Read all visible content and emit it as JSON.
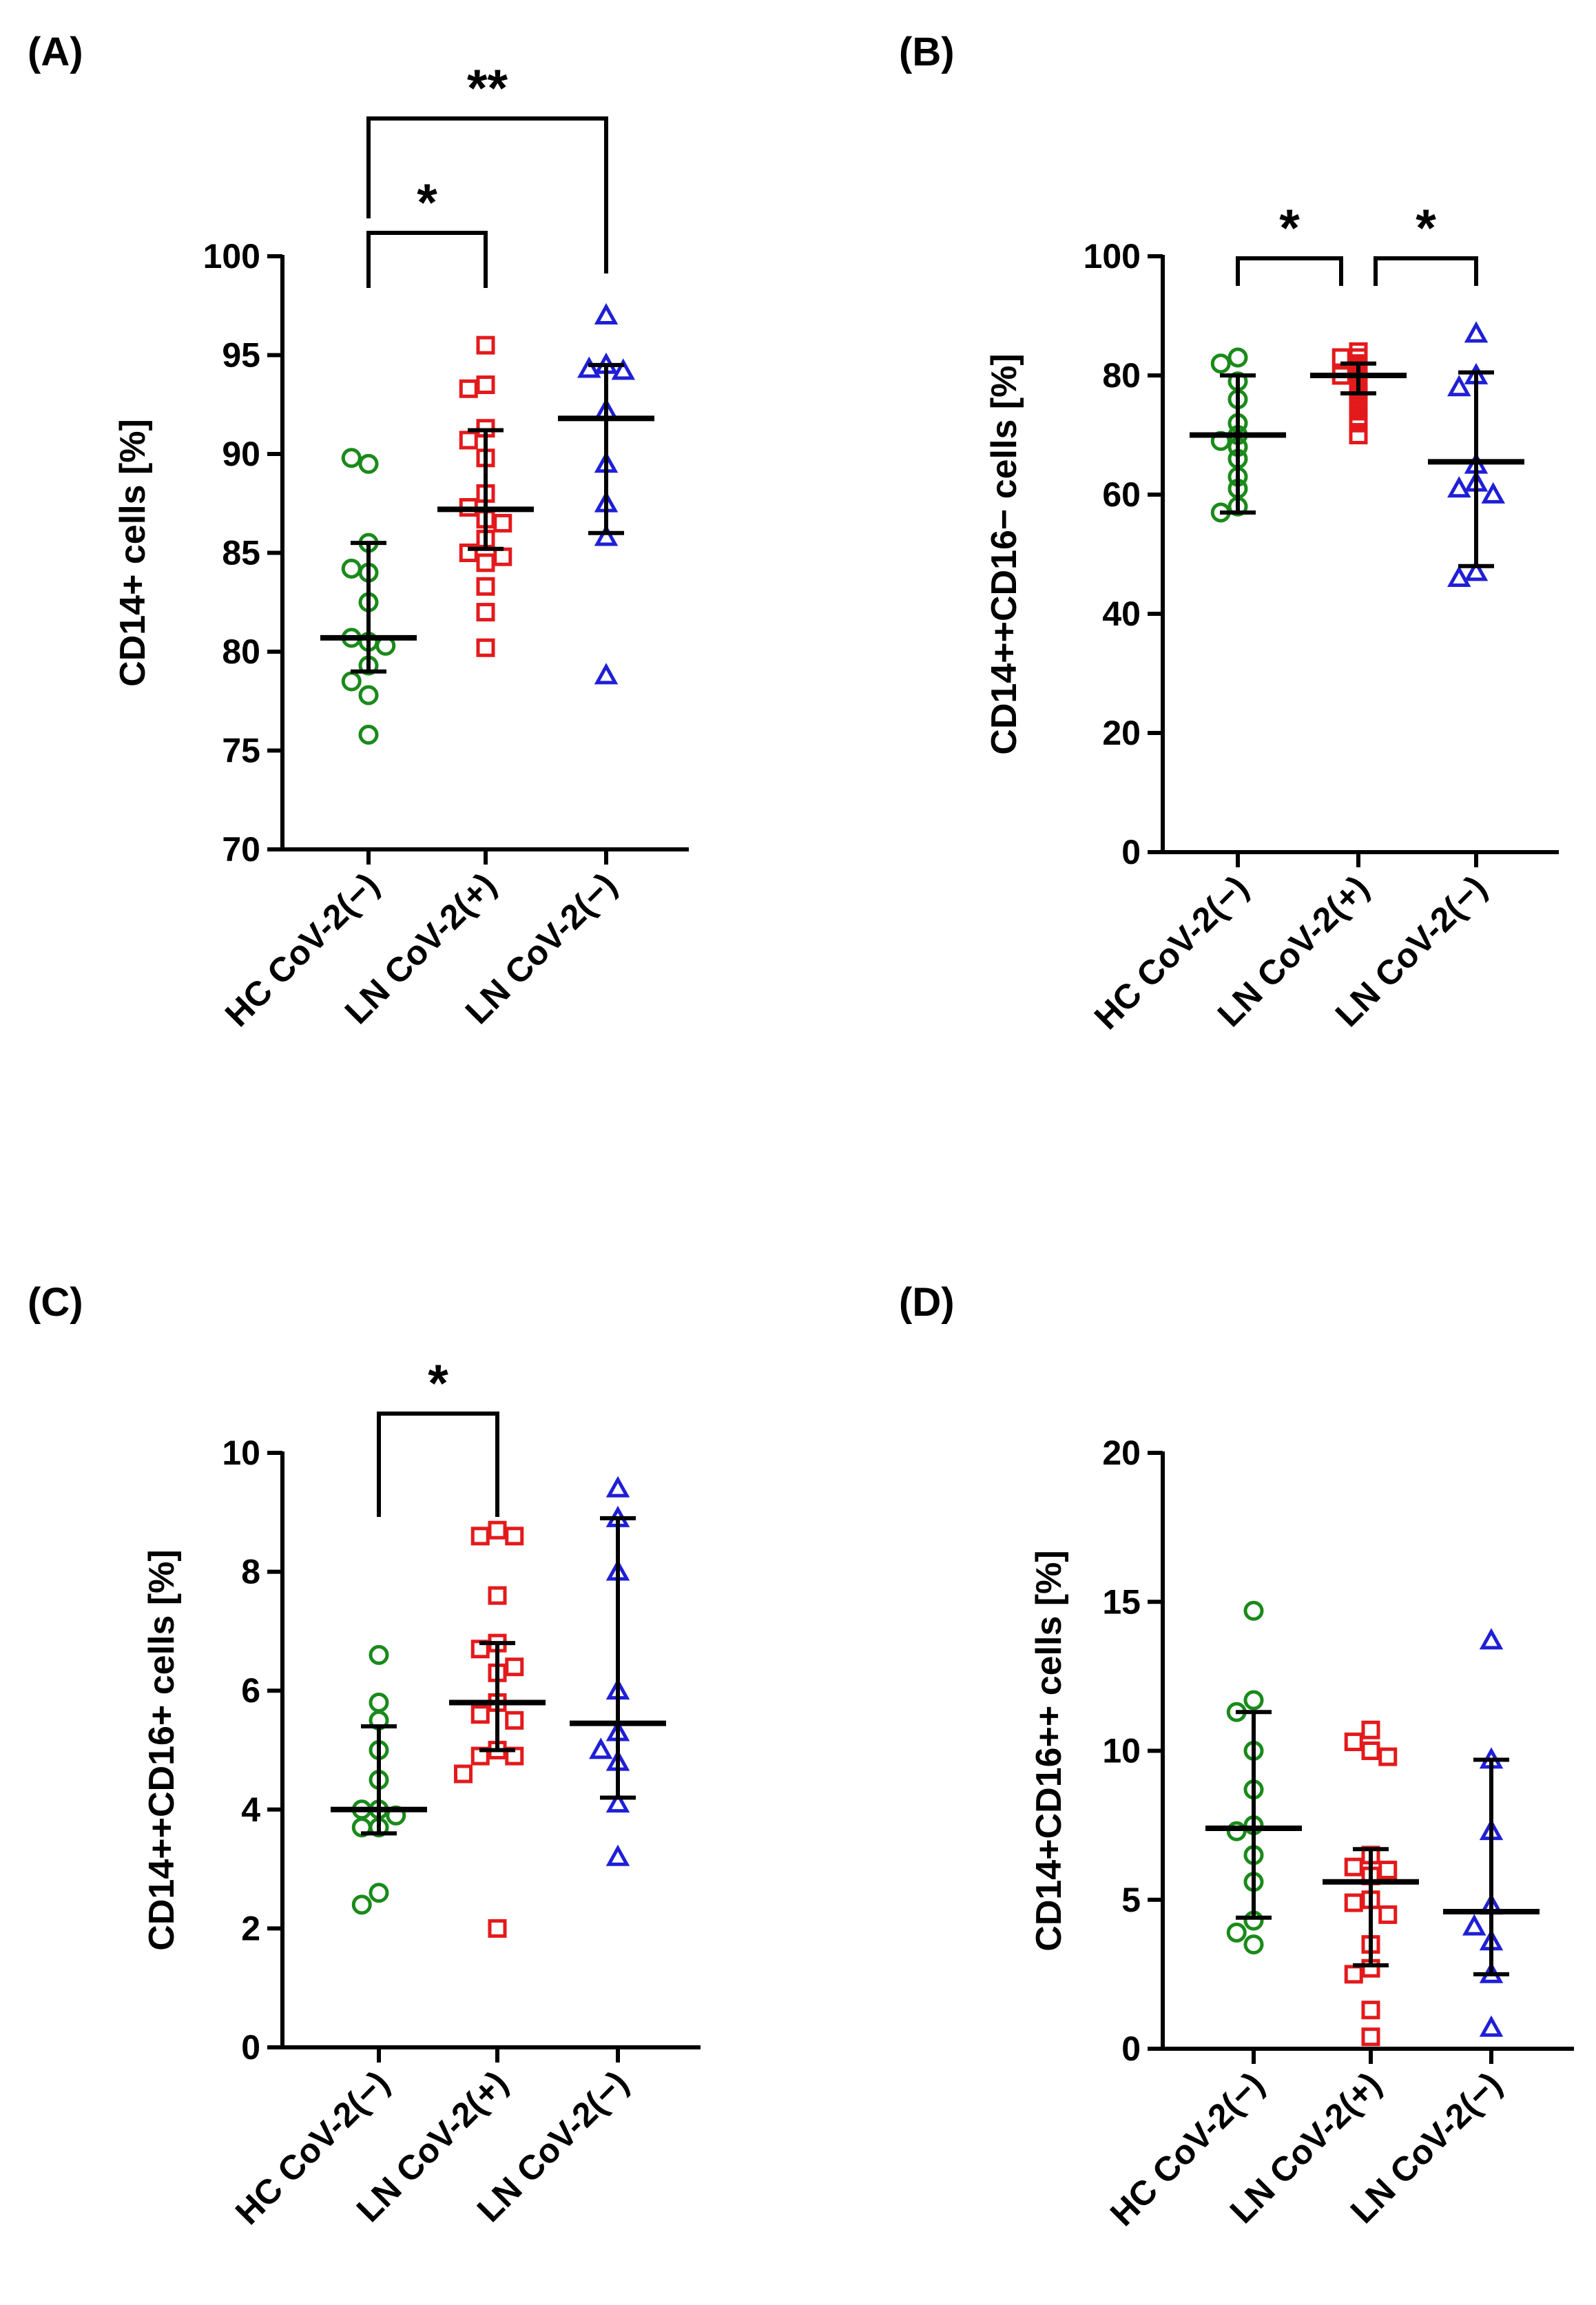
{
  "chart_data": [
    {
      "type": "scatter",
      "panel_label": "(A)",
      "ylabel": "CD14+ cells [%]",
      "ylim": [
        70,
        100
      ],
      "yticks": [
        70,
        75,
        80,
        85,
        90,
        95,
        100
      ],
      "categories": [
        "HC CoV-2(−)",
        "LN CoV-2(+)",
        "LN CoV-2(−)"
      ],
      "series": [
        {
          "name": "HC CoV-2(−)",
          "marker": "circle",
          "color": "#1a8a1a",
          "values": [
            89.5,
            89.8,
            85.5,
            84.0,
            84.2,
            82.5,
            80.5,
            80.7,
            80.3,
            79.3,
            78.5,
            77.8,
            75.8
          ],
          "center": 80.7,
          "err_low": 79.0,
          "err_high": 85.5
        },
        {
          "name": "LN CoV-2(+)",
          "marker": "square",
          "color": "#e31a1c",
          "values": [
            95.5,
            93.5,
            93.3,
            91.3,
            90.7,
            89.8,
            88.0,
            87.3,
            86.7,
            86.5,
            85.7,
            85.0,
            84.8,
            84.5,
            83.3,
            82.0,
            80.2
          ],
          "center": 87.2,
          "err_low": 85.2,
          "err_high": 91.2
        },
        {
          "name": "LN CoV-2(−)",
          "marker": "triangle",
          "color": "#1f1fd6",
          "values": [
            97.0,
            94.5,
            94.3,
            94.2,
            92.2,
            89.5,
            87.5,
            85.8,
            78.8
          ],
          "center": 91.8,
          "err_low": 86.0,
          "err_high": 94.5
        }
      ],
      "significance": [
        {
          "from": 0,
          "to": 1,
          "label": "*"
        },
        {
          "from": 0,
          "to": 2,
          "label": "**"
        }
      ]
    },
    {
      "type": "scatter",
      "panel_label": "(B)",
      "ylabel": "CD14++CD16− cells [%]",
      "ylim": [
        0,
        100
      ],
      "yticks": [
        0,
        20,
        40,
        60,
        80,
        100
      ],
      "categories": [
        "HC CoV-2(−)",
        "LN CoV-2(+)",
        "LN CoV-2(−)"
      ],
      "series": [
        {
          "name": "HC CoV-2(−)",
          "marker": "circle",
          "color": "#1a8a1a",
          "values": [
            83,
            82,
            79,
            76,
            72,
            70,
            69,
            68,
            66,
            63,
            61,
            58,
            57
          ],
          "center": 70,
          "err_low": 57,
          "err_high": 80
        },
        {
          "name": "LN CoV-2(+)",
          "marker": "square",
          "color": "#e31a1c",
          "values": [
            84,
            83,
            83,
            82,
            81,
            80,
            80,
            79,
            78,
            77,
            76,
            75,
            74,
            73,
            72,
            70
          ],
          "center": 80,
          "err_low": 77,
          "err_high": 82
        },
        {
          "name": "LN CoV-2(−)",
          "marker": "triangle",
          "color": "#1f1fd6",
          "values": [
            87,
            80,
            78,
            65,
            62,
            61,
            60,
            47,
            46
          ],
          "center": 65.5,
          "err_low": 48,
          "err_high": 80.5
        }
      ],
      "significance": [
        {
          "from": 0,
          "to": 1,
          "label": "*"
        },
        {
          "from": 1,
          "to": 2,
          "label": "*"
        }
      ]
    },
    {
      "type": "scatter",
      "panel_label": "(C)",
      "ylabel": "CD14++CD16+ cells [%]",
      "ylim": [
        0,
        10
      ],
      "yticks": [
        0,
        2,
        4,
        6,
        8,
        10
      ],
      "categories": [
        "HC CoV-2(−)",
        "LN CoV-2(+)",
        "LN CoV-2(−)"
      ],
      "series": [
        {
          "name": "HC CoV-2(−)",
          "marker": "circle",
          "color": "#1a8a1a",
          "values": [
            6.6,
            5.8,
            5.5,
            5.0,
            4.5,
            4.0,
            4.0,
            3.9,
            3.7,
            3.7,
            2.6,
            2.4
          ],
          "center": 4.0,
          "err_low": 3.6,
          "err_high": 5.4
        },
        {
          "name": "LN CoV-2(+)",
          "marker": "square",
          "color": "#e31a1c",
          "values": [
            8.7,
            8.6,
            8.6,
            7.6,
            6.8,
            6.7,
            6.4,
            6.3,
            5.8,
            5.6,
            5.5,
            5.0,
            4.9,
            4.9,
            4.6,
            2.0
          ],
          "center": 5.8,
          "err_low": 5.0,
          "err_high": 6.8
        },
        {
          "name": "LN CoV-2(−)",
          "marker": "triangle",
          "color": "#1f1fd6",
          "values": [
            9.4,
            8.9,
            8.0,
            6.0,
            5.3,
            5.0,
            4.8,
            4.1,
            3.2
          ],
          "center": 5.45,
          "err_low": 4.2,
          "err_high": 8.9
        }
      ],
      "significance": [
        {
          "from": 0,
          "to": 1,
          "label": "*"
        }
      ]
    },
    {
      "type": "scatter",
      "panel_label": "(D)",
      "ylabel": "CD14+CD16++ cells [%]",
      "ylim": [
        0,
        20
      ],
      "yticks": [
        0,
        5,
        10,
        15,
        20
      ],
      "categories": [
        "HC CoV-2(−)",
        "LN CoV-2(+)",
        "LN CoV-2(−)"
      ],
      "series": [
        {
          "name": "HC CoV-2(−)",
          "marker": "circle",
          "color": "#1a8a1a",
          "values": [
            14.7,
            11.7,
            11.3,
            10.0,
            8.7,
            7.5,
            7.3,
            6.5,
            5.6,
            4.3,
            3.9,
            3.5
          ],
          "center": 7.4,
          "err_low": 4.4,
          "err_high": 11.3
        },
        {
          "name": "LN CoV-2(+)",
          "marker": "square",
          "color": "#e31a1c",
          "values": [
            10.7,
            10.3,
            10.0,
            9.8,
            6.5,
            6.1,
            6.0,
            5.8,
            5.0,
            4.9,
            4.5,
            3.5,
            2.7,
            2.5,
            1.3,
            0.4
          ],
          "center": 5.6,
          "err_low": 2.8,
          "err_high": 6.7
        },
        {
          "name": "LN CoV-2(−)",
          "marker": "triangle",
          "color": "#1f1fd6",
          "values": [
            13.7,
            9.7,
            7.3,
            4.8,
            4.1,
            3.6,
            2.5,
            0.7
          ],
          "center": 4.6,
          "err_low": 2.5,
          "err_high": 9.7
        }
      ],
      "significance": []
    }
  ]
}
